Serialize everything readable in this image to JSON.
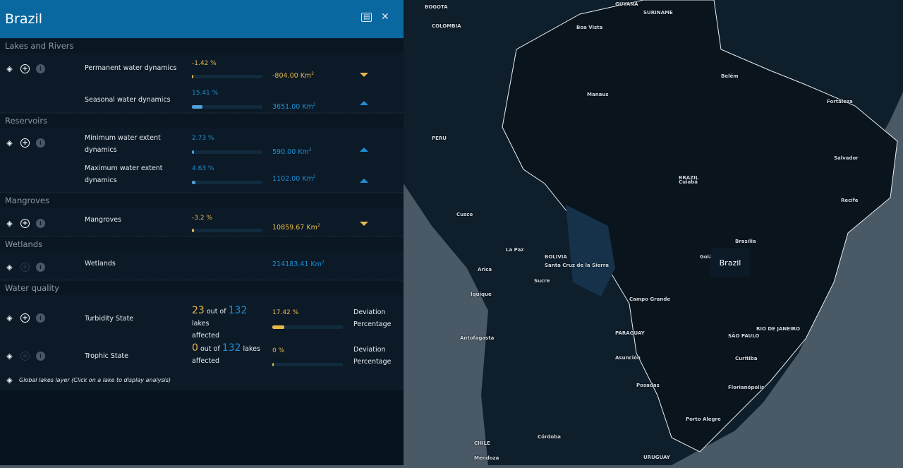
{
  "header": {
    "title": "Brazil",
    "pdf_icon": "pdf-icon",
    "close_icon": "close-icon"
  },
  "sections": {
    "lakes": {
      "title": "Lakes and Rivers",
      "permanent": {
        "label": "Permanent water dynamics",
        "pct": "-1.42 %",
        "km": "-804.00 Km",
        "fill": 1.42,
        "trend": "down"
      },
      "seasonal": {
        "label": "Seasonal water dynamics",
        "pct": "15.41 %",
        "km": "3651.00 Km",
        "fill": 15.41,
        "trend": "up"
      }
    },
    "reservoirs": {
      "title": "Reservoirs",
      "min": {
        "label": "Minimum water extent dynamics",
        "pct": "2.73 %",
        "km": "590.00 Km",
        "fill": 2.73,
        "trend": "up"
      },
      "max": {
        "label": "Maximum water extent dynamics",
        "pct": "4.63 %",
        "km": "1102.00 Km",
        "fill": 4.63,
        "trend": "up"
      }
    },
    "mangroves": {
      "title": "Mangroves",
      "row": {
        "label": "Mangroves",
        "pct": "-3.2 %",
        "km": "10859.67 Km",
        "fill": 3.2,
        "trend": "down"
      }
    },
    "wetlands": {
      "title": "Wetlands",
      "row": {
        "label": "Wetlands",
        "km": "214183.41 Km"
      }
    },
    "quality": {
      "title": "Water quality",
      "turbidity": {
        "label": "Turbidity State",
        "affected": "23",
        "out_of": "out of",
        "total": "132",
        "lakes": "lakes",
        "affected_label": "affected",
        "pct": "17.42 %",
        "fill": 17.42,
        "dev1": "Deviation",
        "dev2": "Percentage"
      },
      "trophic": {
        "label": "Trophic State",
        "affected": "0",
        "out_of": "out of",
        "total": "132",
        "lakes": "lakes",
        "affected_label": "affected",
        "pct": "0 %",
        "fill": 0,
        "dev1": "Deviation",
        "dev2": "Percentage"
      },
      "global": "Global lakes layer (Click on a lake to display analysis)"
    }
  },
  "units_sup": "2",
  "map": {
    "tooltip": "Brazil",
    "labels": [
      "BOGOTA",
      "COLOMBIA",
      "GUYANA",
      "SURINAME",
      "PERU",
      "BRAZIL",
      "BOLIVIA",
      "La Paz",
      "Santa Cruz de la Sierra",
      "PARAGUAY",
      "CHILE",
      "URUGUAY",
      "SÃO PAULO",
      "RIO DE JANEIRO",
      "Brasília",
      "Manaus",
      "Belém",
      "Fortaleza",
      "Recife",
      "Salvador",
      "Cuiabá",
      "Campo Grande",
      "Asunción",
      "Porto Alegre",
      "Curitiba",
      "Antofagasta",
      "Iquique",
      "Córdoba",
      "Mendoza",
      "Boa Vista",
      "Cusco",
      "Arica",
      "Sucre",
      "Goiânia",
      "Florianópolis",
      "Posadas"
    ]
  },
  "colors": {
    "header": "#0a68a0",
    "negative": "#e5b84a",
    "positive": "#1e8fd6"
  }
}
